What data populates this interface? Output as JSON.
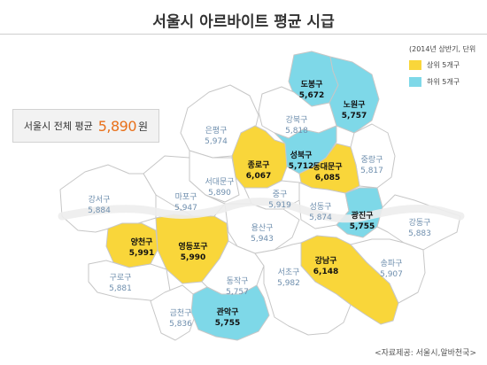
{
  "title": "서울시 아르바이트 평균 시급",
  "legend": {
    "unit": "(2014년 상반기, 단위",
    "items": [
      {
        "label": "상위 5개구",
        "color": "#f9d63a"
      },
      {
        "label": "하위 5개구",
        "color": "#7ed8e8"
      }
    ]
  },
  "total": {
    "label": "서울시 전체 평균",
    "value": "5,890",
    "unit": "원"
  },
  "source": "<자료제공: 서울시,알바천국>",
  "colors": {
    "top": "#f9d63a",
    "bottom": "#7ed8e8",
    "other": "#ffffff",
    "border": "#c7c7c7"
  },
  "districts": [
    {
      "id": "dobong",
      "name": "도봉구",
      "value": "5,672",
      "group": "bottom"
    },
    {
      "id": "nowon",
      "name": "노원구",
      "value": "5,757",
      "group": "bottom"
    },
    {
      "id": "eunpyeong",
      "name": "은평구",
      "value": "5,974",
      "group": "other"
    },
    {
      "id": "gangbuk",
      "name": "강북구",
      "value": "5,818",
      "group": "other"
    },
    {
      "id": "jongno",
      "name": "종로구",
      "value": "6,067",
      "group": "top"
    },
    {
      "id": "seongbuk",
      "name": "성북구",
      "value": "5,712",
      "group": "bottom"
    },
    {
      "id": "jungnang",
      "name": "중랑구",
      "value": "5,817",
      "group": "other"
    },
    {
      "id": "dongdaemun",
      "name": "동대문구",
      "value": "6,085",
      "group": "top"
    },
    {
      "id": "seodaemun",
      "name": "서대문구",
      "value": "5,890",
      "group": "other"
    },
    {
      "id": "mapo",
      "name": "마포구",
      "value": "5,947",
      "group": "other"
    },
    {
      "id": "jung",
      "name": "중구",
      "value": "5,919",
      "group": "other"
    },
    {
      "id": "seongdong",
      "name": "성동구",
      "value": "5,874",
      "group": "other"
    },
    {
      "id": "gwangjin",
      "name": "광진구",
      "value": "5,755",
      "group": "bottom"
    },
    {
      "id": "gangseo",
      "name": "강서구",
      "value": "5,884",
      "group": "other"
    },
    {
      "id": "yongsan",
      "name": "용산구",
      "value": "5,943",
      "group": "other"
    },
    {
      "id": "gangdong",
      "name": "강동구",
      "value": "5,883",
      "group": "other"
    },
    {
      "id": "yangcheon",
      "name": "양천구",
      "value": "5,991",
      "group": "top"
    },
    {
      "id": "yeongdeungpo",
      "name": "영등포구",
      "value": "5,990",
      "group": "top"
    },
    {
      "id": "dongjak",
      "name": "동작구",
      "value": "5,757",
      "group": "other"
    },
    {
      "id": "gangnam",
      "name": "강남구",
      "value": "6,148",
      "group": "top"
    },
    {
      "id": "songpa",
      "name": "송파구",
      "value": "5,907",
      "group": "other"
    },
    {
      "id": "guro",
      "name": "구로구",
      "value": "5,881",
      "group": "other"
    },
    {
      "id": "seocho",
      "name": "서초구",
      "value": "5,982",
      "group": "other"
    },
    {
      "id": "geumcheon",
      "name": "금천구",
      "value": "5,836",
      "group": "other"
    },
    {
      "id": "gwanak",
      "name": "관악구",
      "value": "5,755",
      "group": "bottom"
    }
  ]
}
